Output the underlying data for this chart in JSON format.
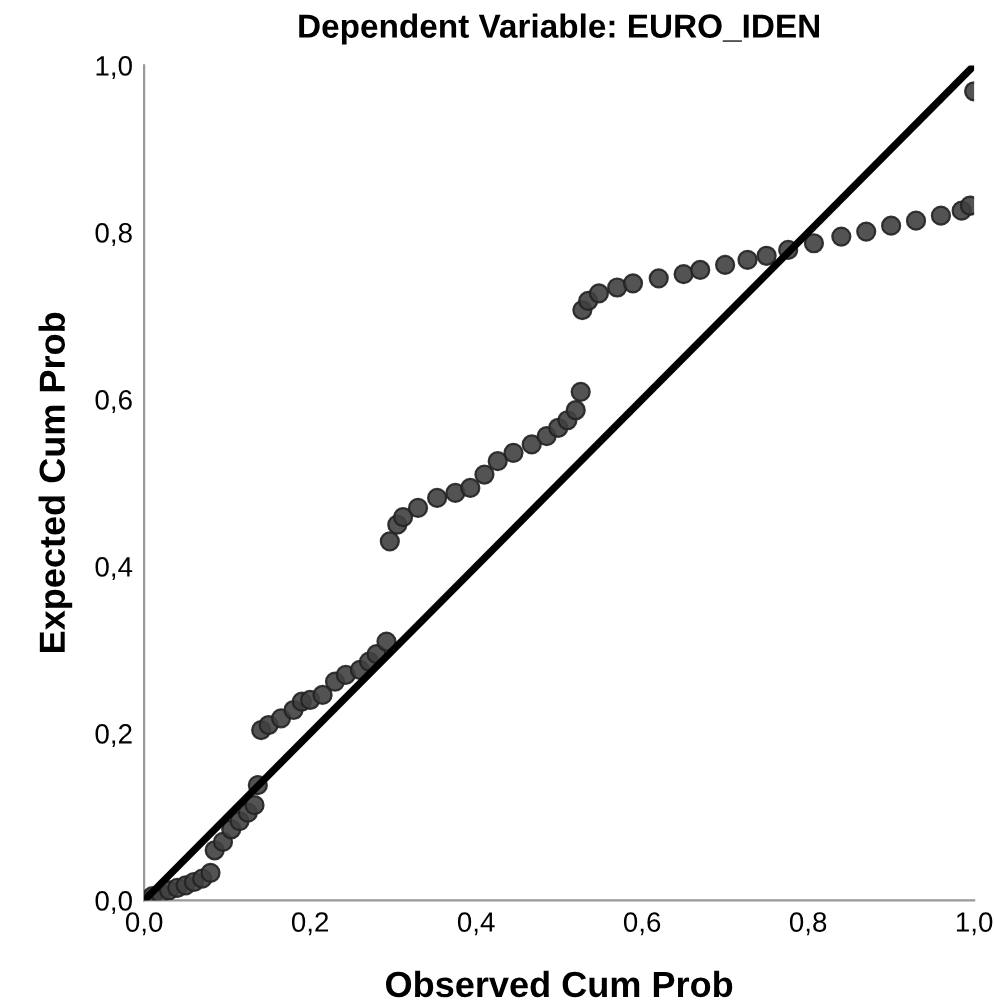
{
  "chart_data": {
    "type": "scatter",
    "title": "Dependent Variable: EURO_IDEN",
    "xlabel": "Observed Cum Prob",
    "ylabel": "Expected Cum Prob",
    "xlim": [
      0,
      1
    ],
    "ylim": [
      0,
      1
    ],
    "xticks": [
      {
        "value": 0,
        "label": "0,0"
      },
      {
        "value": 0.2,
        "label": "0,2"
      },
      {
        "value": 0.4,
        "label": "0,4"
      },
      {
        "value": 0.6,
        "label": "0,6"
      },
      {
        "value": 0.8,
        "label": "0,8"
      },
      {
        "value": 1,
        "label": "1,0"
      }
    ],
    "yticks": [
      {
        "value": 0,
        "label": "0,0"
      },
      {
        "value": 0.2,
        "label": "0,2"
      },
      {
        "value": 0.4,
        "label": "0,4"
      },
      {
        "value": 0.6,
        "label": "0,6"
      },
      {
        "value": 0.8,
        "label": "0,8"
      },
      {
        "value": 1,
        "label": "1,0"
      }
    ],
    "grid": false,
    "legend": false,
    "marker": "circle",
    "series": [
      {
        "color": "#404040",
        "x": [
          0.0,
          0.01,
          0.02,
          0.03,
          0.04,
          0.05,
          0.06,
          0.07,
          0.08,
          0.085,
          0.095,
          0.105,
          0.115,
          0.125,
          0.133,
          0.137,
          0.141,
          0.15,
          0.165,
          0.18,
          0.19,
          0.2,
          0.215,
          0.23,
          0.243,
          0.26,
          0.271,
          0.28,
          0.292,
          0.296,
          0.305,
          0.312,
          0.33,
          0.353,
          0.375,
          0.393,
          0.41,
          0.426,
          0.445,
          0.467,
          0.485,
          0.499,
          0.51,
          0.52,
          0.526,
          0.528,
          0.535,
          0.548,
          0.57,
          0.589,
          0.62,
          0.65,
          0.67,
          0.7,
          0.727,
          0.75,
          0.776,
          0.807,
          0.84,
          0.87,
          0.9,
          0.93,
          0.96,
          0.985,
          0.995,
          1.0
        ],
        "values": [
          0.0,
          0.005,
          0.008,
          0.012,
          0.015,
          0.018,
          0.022,
          0.026,
          0.033,
          0.06,
          0.07,
          0.085,
          0.095,
          0.105,
          0.114,
          0.138,
          0.204,
          0.21,
          0.218,
          0.228,
          0.238,
          0.24,
          0.246,
          0.262,
          0.27,
          0.276,
          0.286,
          0.295,
          0.31,
          0.43,
          0.45,
          0.459,
          0.47,
          0.482,
          0.488,
          0.494,
          0.51,
          0.526,
          0.536,
          0.546,
          0.556,
          0.566,
          0.575,
          0.587,
          0.609,
          0.707,
          0.718,
          0.727,
          0.734,
          0.739,
          0.745,
          0.75,
          0.755,
          0.761,
          0.767,
          0.772,
          0.779,
          0.787,
          0.795,
          0.801,
          0.808,
          0.814,
          0.82,
          0.826,
          0.832,
          0.969
        ]
      },
      {
        "type": "line",
        "color": "#000000",
        "line_style": "solid",
        "marker": "none",
        "x": [
          0,
          1
        ],
        "values": [
          0,
          1
        ]
      }
    ]
  }
}
